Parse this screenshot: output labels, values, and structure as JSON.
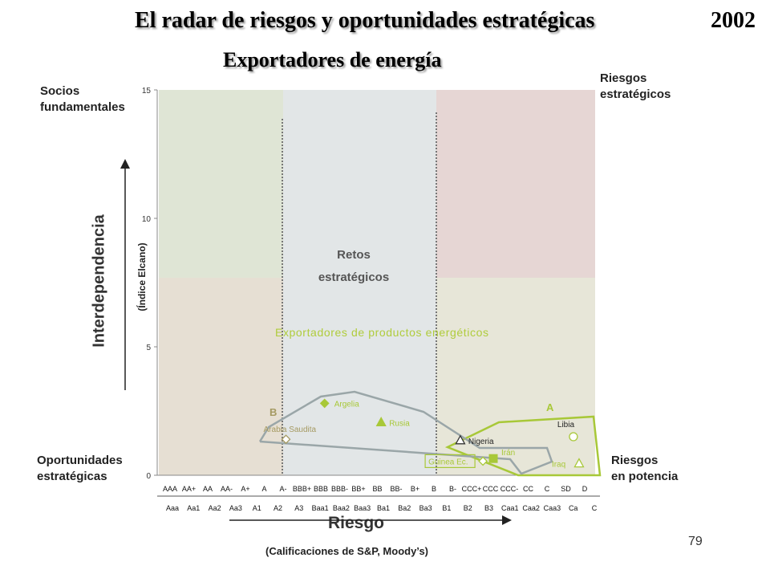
{
  "title": "El radar de riesgos y oportunidades estratégicas",
  "year": "2002",
  "subtitle": "Exportadores de energía",
  "corners": {
    "top_left": "Socios\nfundamentales",
    "top_right": "Riesgos\nestratégicos",
    "bottom_left": "Oportunidades\nestratégicas",
    "bottom_right": "Riesgos\nen potencia"
  },
  "center_label": [
    "Retos",
    "estratégicos"
  ],
  "group_label": "Exportadores de productos energéticos",
  "group_names": [
    "A",
    "B"
  ],
  "y_axis": {
    "label": "Interdependencia",
    "sublabel": "(Índice Elcano)"
  },
  "x_axis": {
    "label": "Riesgo",
    "sublabel": "(Calificaciones de S&P, Moody’s)"
  },
  "page_number": "79",
  "colors": {
    "socios": "#dfe5d5",
    "retos": "#e2e6e7",
    "riesgos_estrategicos": "#e6d6d4",
    "oportunidades": "#e6dfd3",
    "riesgos_potencia": "#e7e6d8",
    "lime": "#a8c838",
    "gray_line": "#9aa6a8",
    "olive": "#a59a62"
  },
  "chart_data": {
    "type": "scatter",
    "ylim": [
      0,
      15
    ],
    "y_ticks": [
      "0",
      "5",
      "10",
      "15"
    ],
    "x_ticks_sp": [
      "AAA",
      "AA+",
      "AA",
      "AA-",
      "A+",
      "A",
      "A-",
      "BBB+",
      "BBB",
      "BBB-",
      "BB+",
      "BB",
      "BB-",
      "B+",
      "B",
      "B-",
      "CCC+",
      "CCC",
      "CCC-",
      "CC",
      "C",
      "SD",
      "D"
    ],
    "x_ticks_moodys": [
      "Aaa",
      "Aa1",
      "Aa2",
      "Aa3",
      "A1",
      "A2",
      "A3",
      "Baa1",
      "Baa2",
      "Baa3",
      "Ba1",
      "Ba2",
      "Ba3",
      "B1",
      "B2",
      "B3",
      "Caa1",
      "Caa2",
      "Caa3",
      "Ca",
      "C"
    ],
    "points": [
      {
        "name": "Argelia",
        "rating": "BBB",
        "x": 8.2,
        "y": 2.8,
        "marker": "diamond-filled",
        "color": "#a8c838"
      },
      {
        "name": "Arabia Saudita",
        "rating": "A-",
        "x": 6.15,
        "y": 1.4,
        "marker": "diamond-open",
        "color": "#a59a62"
      },
      {
        "name": "Rusia",
        "rating": "BB",
        "x": 11.2,
        "y": 2.05,
        "marker": "triangle-filled",
        "color": "#a8c838"
      },
      {
        "name": "Nigeria",
        "rating": "B-",
        "x": 15.4,
        "y": 1.35,
        "marker": "triangle-open",
        "color": "#333333"
      },
      {
        "name": "Libia",
        "rating": "C",
        "x": 21.4,
        "y": 1.5,
        "marker": "circle-open",
        "color": "#a8c838"
      },
      {
        "name": "Guinea Ec.",
        "rating": "CCC",
        "x": 16.6,
        "y": 0.55,
        "marker": "diamond-open",
        "color": "#a8c838"
      },
      {
        "name": "Irán",
        "rating": "CCC",
        "x": 17.15,
        "y": 0.65,
        "marker": "square-filled",
        "color": "#a8c838"
      },
      {
        "name": "Iraq",
        "rating": "SD",
        "x": 21.7,
        "y": 0.45,
        "marker": "triangle-open",
        "color": "#a8c838"
      }
    ]
  }
}
